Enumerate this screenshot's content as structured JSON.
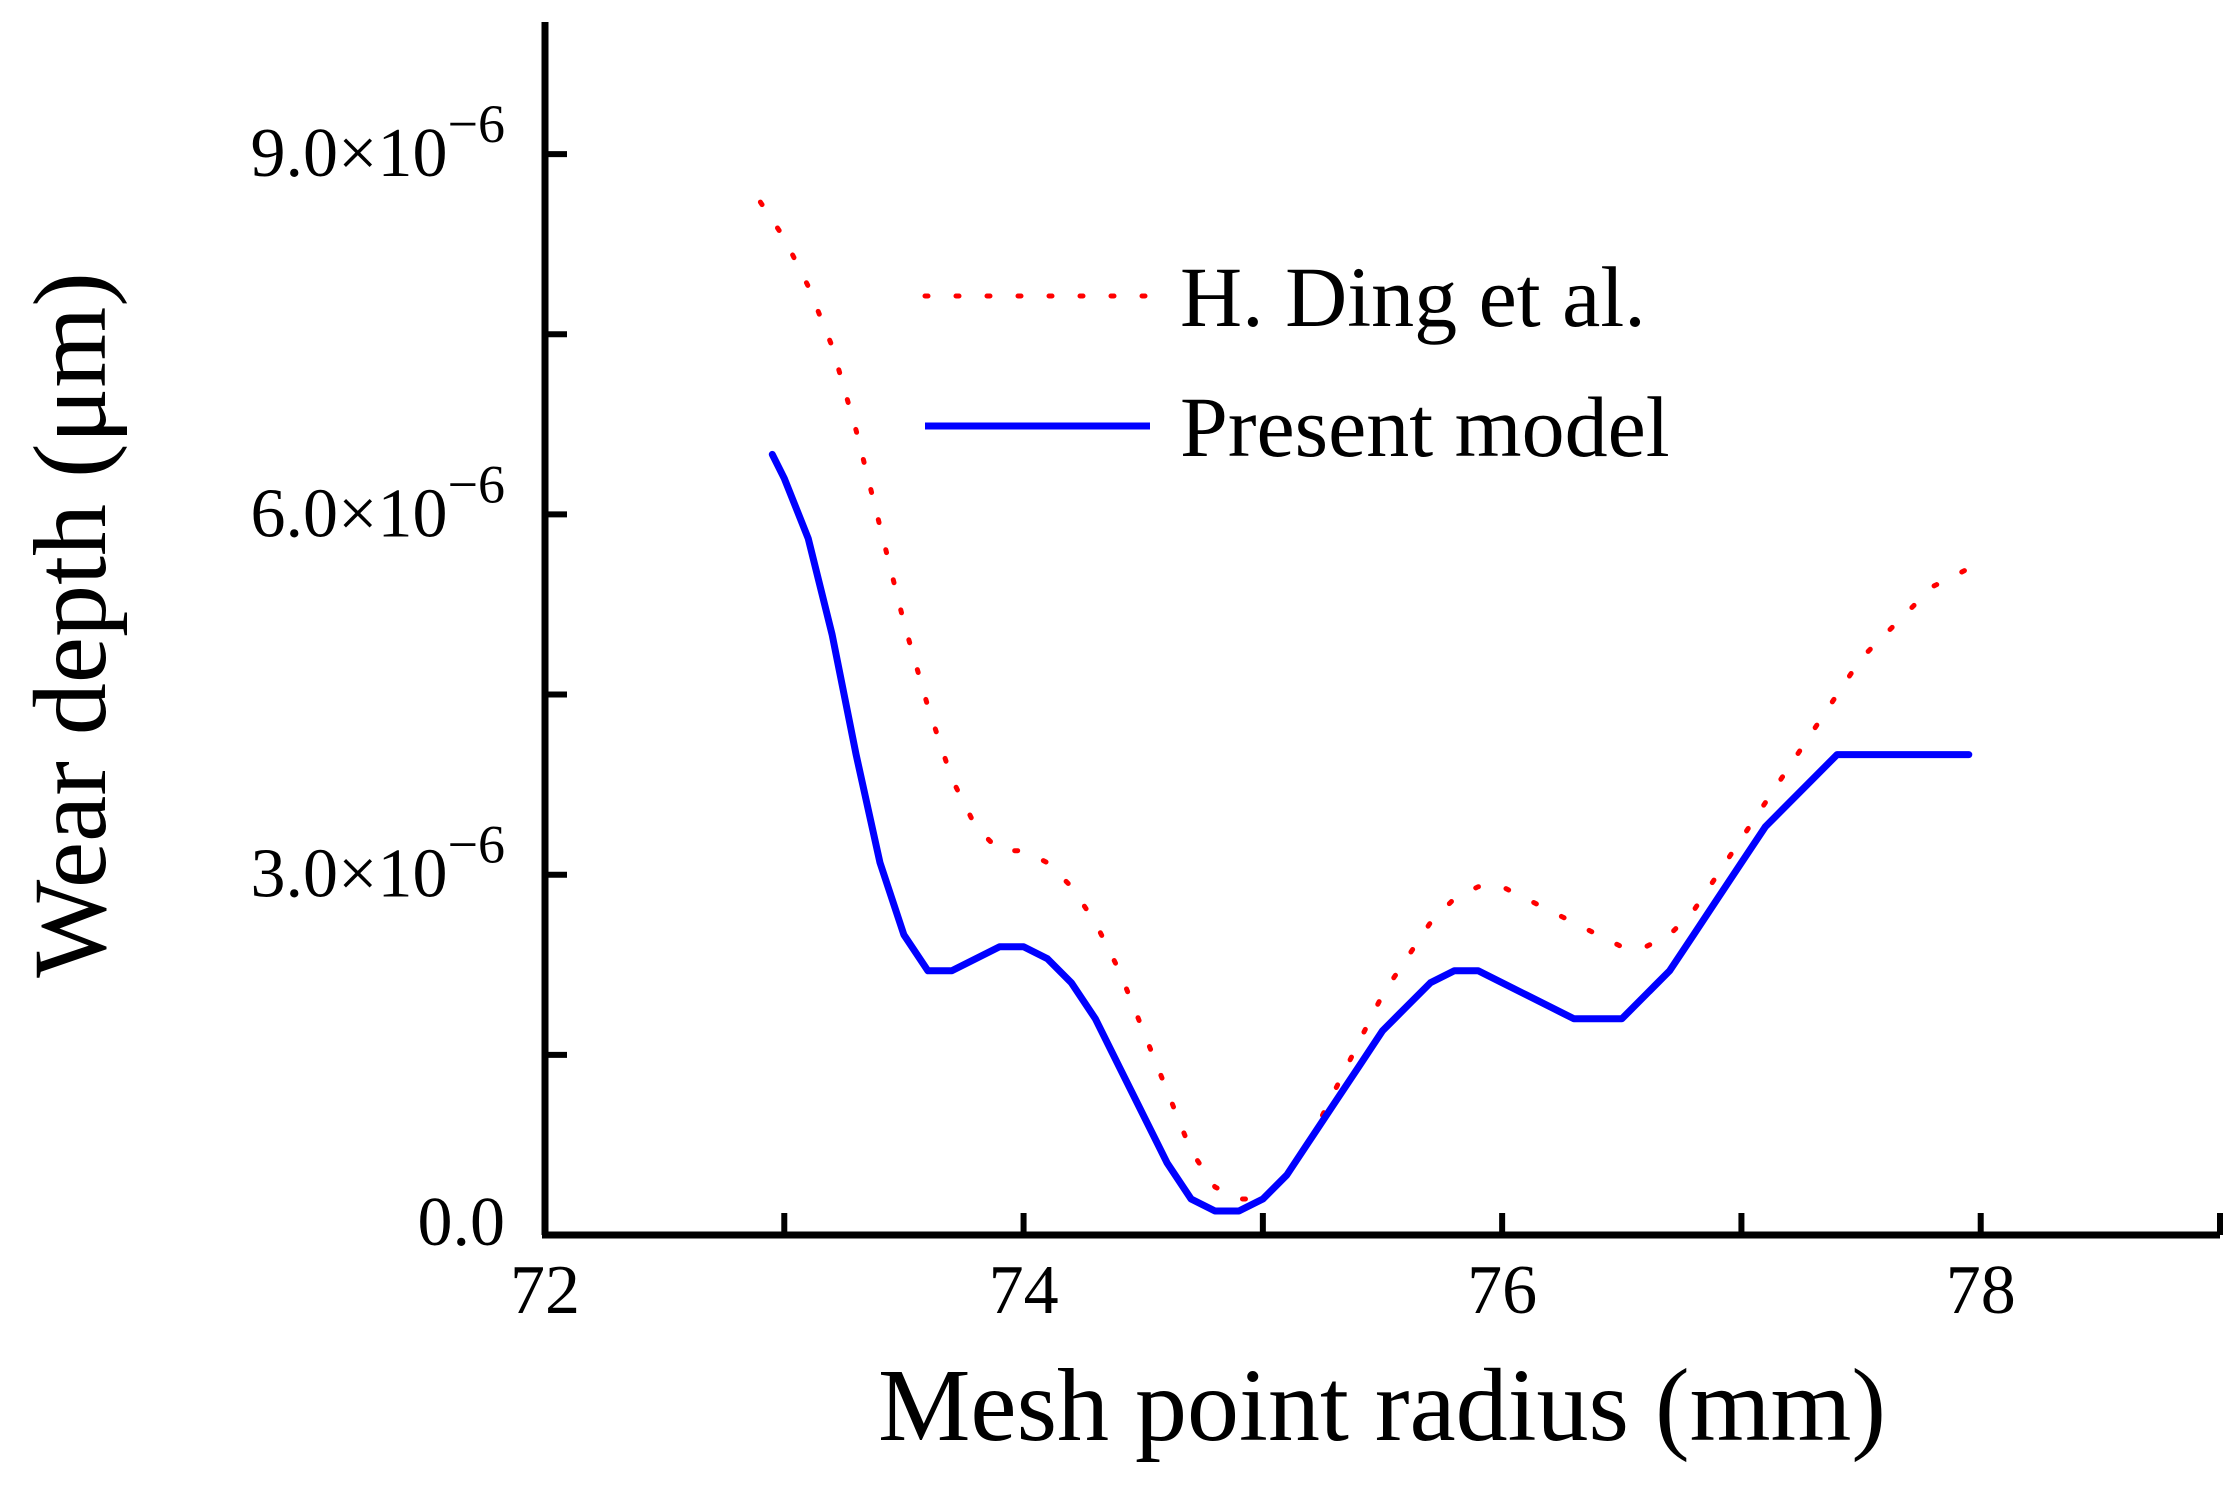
{
  "chart_data": {
    "type": "line",
    "title": "",
    "xlabel": "Mesh point radius (mm)",
    "ylabel": "Wear depth (μm)",
    "xlim": [
      72,
      79
    ],
    "ylim": [
      0,
      1.01e-05
    ],
    "x_ticks": [
      {
        "value": 72,
        "label": "72"
      },
      {
        "value": 74,
        "label": "74"
      },
      {
        "value": 76,
        "label": "76"
      },
      {
        "value": 78,
        "label": "78"
      }
    ],
    "x_minor_ticks": [
      73,
      75,
      77,
      79
    ],
    "y_ticks": [
      {
        "value": 0,
        "label": "0.0",
        "exponent": ""
      },
      {
        "value": 3e-06,
        "label": "3.0×10",
        "exponent": "−6"
      },
      {
        "value": 6e-06,
        "label": "6.0×10",
        "exponent": "−6"
      },
      {
        "value": 9e-06,
        "label": "9.0×10",
        "exponent": "−6"
      }
    ],
    "y_minor_ticks": [
      1.5e-06,
      4.5e-06,
      7.5e-06
    ],
    "grid": false,
    "legend_position": "top-right",
    "series": [
      {
        "name": "H. Ding et al.",
        "color": "#ff0000",
        "style": "dotted",
        "x": [
          72.9,
          73.0,
          73.1,
          73.2,
          73.3,
          73.4,
          73.5,
          73.6,
          73.7,
          73.8,
          73.9,
          74.0,
          74.1,
          74.2,
          74.3,
          74.4,
          74.5,
          74.6,
          74.7,
          74.8,
          74.9,
          75.0,
          75.1,
          75.2,
          75.3,
          75.4,
          75.5,
          75.6,
          75.7,
          75.8,
          75.9,
          76.0,
          76.1,
          76.2,
          76.3,
          76.4,
          76.5,
          76.6,
          76.7,
          76.8,
          76.9,
          77.0,
          77.1,
          77.2,
          77.3,
          77.4,
          77.5,
          77.6,
          77.7,
          77.8,
          77.9,
          78.0
        ],
        "y": [
          8.6e-06,
          8.3e-06,
          7.9e-06,
          7.4e-06,
          6.7e-06,
          5.9e-06,
          5.1e-06,
          4.4e-06,
          3.8e-06,
          3.4e-06,
          3.2e-06,
          3.2e-06,
          3.1e-06,
          2.9e-06,
          2.6e-06,
          2.2e-06,
          1.7e-06,
          1.2e-06,
          7e-07,
          4e-07,
          3e-07,
          3e-07,
          5e-07,
          8e-07,
          1.2e-06,
          1.6e-06,
          2e-06,
          2.3e-06,
          2.6e-06,
          2.8e-06,
          2.9e-06,
          2.9e-06,
          2.8e-06,
          2.7e-06,
          2.6e-06,
          2.5e-06,
          2.4e-06,
          2.4e-06,
          2.5e-06,
          2.7e-06,
          3e-06,
          3.3e-06,
          3.6e-06,
          3.9e-06,
          4.2e-06,
          4.5e-06,
          4.8e-06,
          5e-06,
          5.2e-06,
          5.4e-06,
          5.5e-06,
          5.6e-06
        ]
      },
      {
        "name": "Present model",
        "color": "#0000ff",
        "style": "solid",
        "x": [
          72.95,
          73.0,
          73.1,
          73.2,
          73.3,
          73.4,
          73.5,
          73.6,
          73.7,
          73.8,
          73.9,
          74.0,
          74.1,
          74.2,
          74.3,
          74.4,
          74.5,
          74.6,
          74.7,
          74.8,
          74.9,
          75.0,
          75.1,
          75.2,
          75.3,
          75.4,
          75.5,
          75.6,
          75.7,
          75.8,
          75.9,
          76.0,
          76.1,
          76.2,
          76.3,
          76.4,
          76.5,
          76.6,
          76.7,
          76.8,
          76.9,
          77.0,
          77.1,
          77.2,
          77.3,
          77.4,
          77.5,
          77.6,
          77.7,
          77.8,
          77.9,
          77.95
        ],
        "y": [
          6.5e-06,
          6.3e-06,
          5.8e-06,
          5e-06,
          4e-06,
          3.1e-06,
          2.5e-06,
          2.2e-06,
          2.2e-06,
          2.3e-06,
          2.4e-06,
          2.4e-06,
          2.3e-06,
          2.1e-06,
          1.8e-06,
          1.4e-06,
          1e-06,
          6e-07,
          3e-07,
          2e-07,
          2e-07,
          3e-07,
          5e-07,
          8e-07,
          1.1e-06,
          1.4e-06,
          1.7e-06,
          1.9e-06,
          2.1e-06,
          2.2e-06,
          2.2e-06,
          2.1e-06,
          2e-06,
          1.9e-06,
          1.8e-06,
          1.8e-06,
          1.8e-06,
          2e-06,
          2.2e-06,
          2.5e-06,
          2.8e-06,
          3.1e-06,
          3.4e-06,
          3.6e-06,
          3.8e-06,
          4e-06,
          4e-06,
          4e-06,
          4e-06,
          4e-06,
          4e-06,
          4e-06
        ]
      }
    ]
  }
}
